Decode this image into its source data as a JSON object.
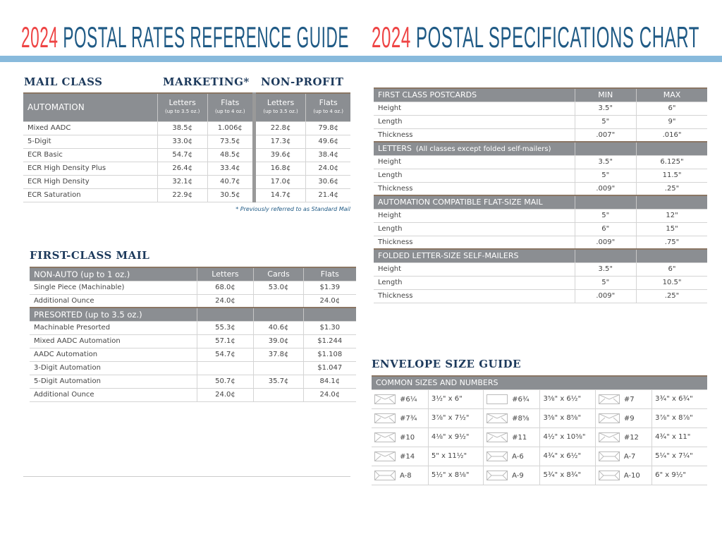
{
  "header": {
    "left": {
      "year": "2024",
      "text": "POSTAL RATES REFERENCE GUIDE"
    },
    "right": {
      "year": "2024",
      "text": "POSTAL SPECIFICATIONS CHART"
    }
  },
  "colors": {
    "year_red": "#ee4444",
    "title_blue": "#1f5a85",
    "band_blue": "#88badc",
    "table_header_gray": "#8b8e92",
    "heading_navy": "#1d3a5c"
  },
  "marketing": {
    "heading_mail_class": "MAIL CLASS",
    "heading_marketing": "MARKETING*",
    "heading_nonprofit": "NON-PROFIT",
    "header": {
      "label": "AUTOMATION",
      "cols": [
        {
          "t": "Letters",
          "s": "(up to 3.5 oz.)"
        },
        {
          "t": "Flats",
          "s": "(up to 4 oz.)"
        },
        {
          "t": "Letters",
          "s": "(up to 3.5 oz.)"
        },
        {
          "t": "Flats",
          "s": "(up to 4 oz.)"
        }
      ]
    },
    "rows": [
      [
        "Mixed AADC",
        "38.5¢",
        "1.006¢",
        "22.8¢",
        "79.8¢"
      ],
      [
        "5-Digit",
        "33.0¢",
        "73.5¢",
        "17.3¢",
        "49.6¢"
      ],
      [
        "ECR Basic",
        "54.7¢",
        "48.5¢",
        "39.6¢",
        "38.4¢"
      ],
      [
        "ECR High Density Plus",
        "26.4¢",
        "33.4¢",
        "16.8¢",
        "24.0¢"
      ],
      [
        "ECR High Density",
        "32.1¢",
        "40.7¢",
        "17.0¢",
        "30.6¢"
      ],
      [
        "ECR Saturation",
        "22.9¢",
        "30.5¢",
        "14.7¢",
        "21.4¢"
      ]
    ],
    "note": "* Previously referred to as Standard Mail"
  },
  "first_class": {
    "heading": "FIRST-CLASS MAIL",
    "groups": [
      {
        "header": [
          "NON-AUTO (up to 1 oz.)",
          "Letters",
          "Cards",
          "Flats"
        ],
        "rows": [
          [
            "Single Piece (Machinable)",
            "68.0¢",
            "53.0¢",
            "$1.39"
          ],
          [
            "Additional Ounce",
            "24.0¢",
            "",
            "24.0¢"
          ]
        ]
      },
      {
        "header": [
          "PRESORTED (up to 3.5 oz.)",
          "",
          "",
          ""
        ],
        "rows": [
          [
            "Machinable Presorted",
            "55.3¢",
            "40.6¢",
            "$1.30"
          ],
          [
            "Mixed AADC Automation",
            "57.1¢",
            "39.0¢",
            "$1.244"
          ],
          [
            "AADC Automation",
            "54.7¢",
            "37.8¢",
            "$1.108"
          ],
          [
            "3-Digit Automation",
            "",
            "",
            "$1.047"
          ],
          [
            "5-Digit Automation",
            "50.7¢",
            "35.7¢",
            "84.1¢"
          ],
          [
            "Additional Ounce",
            "24.0¢",
            "",
            "24.0¢"
          ]
        ]
      }
    ]
  },
  "specs": {
    "groups": [
      {
        "header": [
          "FIRST CLASS POSTCARDS",
          "MIN",
          "MAX"
        ],
        "rows": [
          [
            "Height",
            "3.5\"",
            "6\""
          ],
          [
            "Length",
            "5\"",
            "9\""
          ],
          [
            "Thickness",
            ".007\"",
            ".016\""
          ]
        ]
      },
      {
        "header": [
          "LETTERS",
          "",
          ""
        ],
        "header_note": "(All classes except folded self-mailers)",
        "rows": [
          [
            "Height",
            "3.5\"",
            "6.125\""
          ],
          [
            "Length",
            "5\"",
            "11.5\""
          ],
          [
            "Thickness",
            ".009\"",
            ".25\""
          ]
        ]
      },
      {
        "header": [
          "AUTOMATION COMPATIBLE FLAT-SIZE MAIL",
          "",
          ""
        ],
        "rows": [
          [
            "Height",
            "5\"",
            "12\""
          ],
          [
            "Length",
            "6\"",
            "15\""
          ],
          [
            "Thickness",
            ".009\"",
            ".75\""
          ]
        ]
      },
      {
        "header": [
          "FOLDED LETTER-SIZE SELF-MAILERS",
          "",
          ""
        ],
        "rows": [
          [
            "Height",
            "3.5\"",
            "6\""
          ],
          [
            "Length",
            "5\"",
            "10.5\""
          ],
          [
            "Thickness",
            ".009\"",
            ".25\""
          ]
        ]
      }
    ]
  },
  "envelopes": {
    "heading": "ENVELOPE SIZE GUIDE",
    "header": "COMMON SIZES AND NUMBERS",
    "rows": [
      [
        {
          "name": "#6¼",
          "size": "3½\" x 6\"",
          "icon": "envelope-flap-icon"
        },
        {
          "name": "#6¾",
          "size": "3⅝\" x 6½\"",
          "icon": "envelope-plain-icon"
        },
        {
          "name": "#7",
          "size": "3¾\" x 6¾\"",
          "icon": "envelope-flap-icon"
        }
      ],
      [
        {
          "name": "#7¾",
          "size": "3⅞\" x 7½\"",
          "icon": "envelope-flap-icon"
        },
        {
          "name": "#8⅝",
          "size": "3⅝\" x 8⅝\"",
          "icon": "envelope-flap-icon"
        },
        {
          "name": "#9",
          "size": "3⅞\" x 8⅞\"",
          "icon": "envelope-flap-icon"
        }
      ],
      [
        {
          "name": "#10",
          "size": "4⅛\" x 9½\"",
          "icon": "envelope-flap-icon"
        },
        {
          "name": "#11",
          "size": "4½\" x 10⅜\"",
          "icon": "envelope-flap-icon"
        },
        {
          "name": "#12",
          "size": "4¾\" x 11\"",
          "icon": "envelope-flap-icon"
        }
      ],
      [
        {
          "name": "#14",
          "size": "5\" x 11½\"",
          "icon": "envelope-flap-icon"
        },
        {
          "name": "A-6",
          "size": "4¾\" x 6½\"",
          "icon": "envelope-side-icon"
        },
        {
          "name": "A-7",
          "size": "5¼\" x 7¼\"",
          "icon": "envelope-side-icon"
        }
      ],
      [
        {
          "name": "A-8",
          "size": "5½\" x 8⅛\"",
          "icon": "envelope-side-icon"
        },
        {
          "name": "A-9",
          "size": "5¾\" x 8¾\"",
          "icon": "envelope-side-icon"
        },
        {
          "name": "A-10",
          "size": "6\" x 9½\"",
          "icon": "envelope-side-icon"
        }
      ]
    ]
  }
}
